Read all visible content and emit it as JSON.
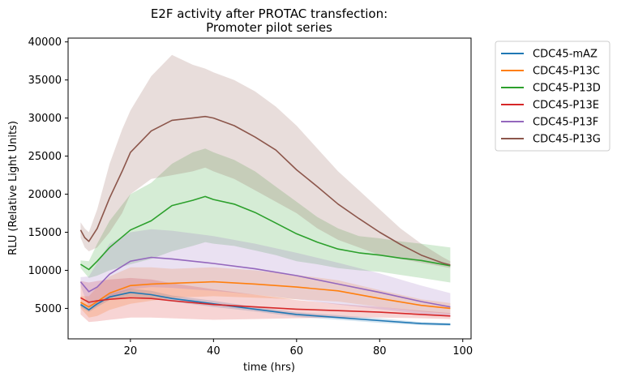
{
  "chart_data": {
    "type": "line",
    "title_line1": "E2F activity after PROTAC transfection:",
    "title_line2": "Promoter pilot series",
    "xlabel": "time (hrs)",
    "ylabel": "RLU (Relative Light Units)",
    "xlim": [
      5,
      102
    ],
    "ylim": [
      1000,
      40500
    ],
    "xticks": [
      20,
      40,
      60,
      80,
      100
    ],
    "yticks": [
      5000,
      10000,
      15000,
      20000,
      25000,
      30000,
      35000,
      40000
    ],
    "legend_position": "outside-right-top",
    "grid": false,
    "series": [
      {
        "name": "CDC45-mAZ",
        "color": "#1f77b4",
        "x": [
          8,
          10,
          12,
          15,
          20,
          25,
          30,
          40,
          50,
          60,
          70,
          80,
          90,
          97
        ],
        "y": [
          5500,
          4800,
          5600,
          6500,
          7100,
          6800,
          6300,
          5600,
          4900,
          4200,
          3800,
          3400,
          3000,
          2900
        ],
        "lower": [
          5200,
          4500,
          5200,
          6100,
          6600,
          6300,
          5900,
          5200,
          4600,
          3900,
          3500,
          3100,
          2800,
          2700
        ],
        "upper": [
          5800,
          5100,
          6000,
          6900,
          7600,
          7300,
          6700,
          6000,
          5200,
          4500,
          4100,
          3700,
          3200,
          3100
        ]
      },
      {
        "name": "CDC45-P13C",
        "color": "#ff7f0e",
        "x": [
          8,
          10,
          12,
          15,
          20,
          25,
          30,
          40,
          50,
          60,
          70,
          80,
          90,
          97
        ],
        "y": [
          5800,
          5200,
          5900,
          7000,
          8000,
          8200,
          8300,
          8500,
          8200,
          7800,
          7300,
          6300,
          5400,
          5000
        ],
        "lower": [
          5000,
          3800,
          4000,
          4800,
          5600,
          6000,
          6400,
          6600,
          6400,
          6200,
          5900,
          5200,
          4600,
          4300
        ],
        "upper": [
          6600,
          6600,
          7800,
          9200,
          10400,
          10400,
          10200,
          10400,
          10000,
          9400,
          8700,
          7400,
          6200,
          5700
        ]
      },
      {
        "name": "CDC45-P13D",
        "color": "#2ca02c",
        "x": [
          8,
          10,
          12,
          15,
          20,
          25,
          30,
          35,
          38,
          40,
          45,
          50,
          55,
          60,
          65,
          70,
          75,
          80,
          85,
          90,
          97
        ],
        "y": [
          10800,
          10100,
          11200,
          13000,
          15300,
          16500,
          18500,
          19200,
          19700,
          19300,
          18700,
          17600,
          16200,
          14800,
          13700,
          12800,
          12300,
          12000,
          11600,
          11300,
          10600
        ],
        "lower": [
          10300,
          9000,
          9300,
          10000,
          10800,
          11500,
          12500,
          13200,
          13700,
          13500,
          13200,
          12600,
          12000,
          11200,
          10800,
          10300,
          10000,
          9800,
          9400,
          9000,
          8400
        ],
        "upper": [
          11300,
          11200,
          13500,
          16500,
          20000,
          21500,
          24000,
          25500,
          26000,
          25500,
          24500,
          23000,
          21000,
          19000,
          17000,
          15500,
          14500,
          14200,
          13800,
          13500,
          13000
        ]
      },
      {
        "name": "CDC45-P13E",
        "color": "#d62728",
        "x": [
          8,
          10,
          12,
          15,
          20,
          25,
          30,
          40,
          50,
          60,
          70,
          80,
          90,
          97
        ],
        "y": [
          6400,
          5800,
          6000,
          6200,
          6400,
          6300,
          6000,
          5500,
          5200,
          4900,
          4700,
          4500,
          4200,
          4000
        ],
        "lower": [
          4200,
          3200,
          3300,
          3500,
          3800,
          3800,
          3700,
          3500,
          3600,
          3700,
          3800,
          3800,
          3700,
          3600
        ],
        "upper": [
          8600,
          8400,
          8600,
          8800,
          9000,
          8800,
          8300,
          7500,
          6800,
          6100,
          5600,
          5200,
          4700,
          4400
        ]
      },
      {
        "name": "CDC45-P13F",
        "color": "#9467bd",
        "x": [
          8,
          10,
          12,
          15,
          20,
          25,
          30,
          40,
          50,
          60,
          70,
          80,
          90,
          97
        ],
        "y": [
          8500,
          7200,
          7800,
          9500,
          11200,
          11700,
          11500,
          10900,
          10200,
          9300,
          8200,
          7100,
          5900,
          5200
        ],
        "lower": [
          7900,
          5200,
          5400,
          6500,
          7500,
          7800,
          7700,
          7300,
          6800,
          6200,
          5500,
          4900,
          4300,
          3900
        ],
        "upper": [
          9100,
          9200,
          11000,
          13500,
          15000,
          15400,
          15200,
          14500,
          13500,
          12300,
          11000,
          9600,
          8000,
          7000
        ]
      },
      {
        "name": "CDC45-P13G",
        "color": "#8c564b",
        "x": [
          8,
          9,
          10,
          12,
          15,
          18,
          20,
          25,
          30,
          35,
          38,
          40,
          45,
          50,
          55,
          60,
          65,
          70,
          75,
          80,
          85,
          90,
          95,
          97
        ],
        "y": [
          15300,
          14300,
          13800,
          15500,
          19500,
          23000,
          25500,
          28300,
          29700,
          30000,
          30200,
          30000,
          29000,
          27500,
          25800,
          23200,
          21000,
          18700,
          16800,
          15000,
          13400,
          12000,
          11000,
          10700
        ],
        "lower": [
          14300,
          13000,
          12500,
          13000,
          15000,
          17500,
          20000,
          22000,
          22500,
          23000,
          23500,
          23000,
          22000,
          20500,
          19000,
          17500,
          15500,
          14000,
          13000,
          12000,
          11500,
          11000,
          10500,
          10300
        ],
        "upper": [
          16300,
          15500,
          15000,
          18000,
          24000,
          28500,
          31000,
          35500,
          38300,
          37000,
          36500,
          36000,
          35000,
          33500,
          31500,
          29000,
          26000,
          23000,
          20500,
          18000,
          15500,
          13500,
          11800,
          11200
        ]
      }
    ]
  }
}
